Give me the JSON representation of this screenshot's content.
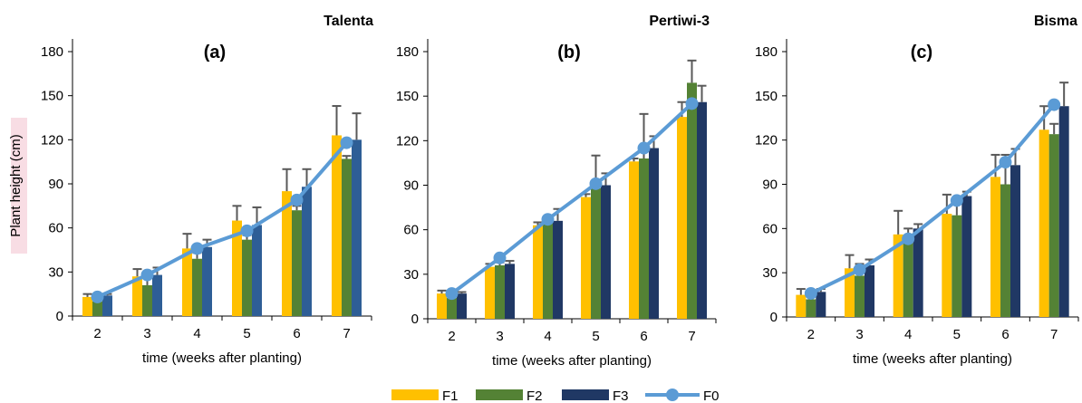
{
  "legend": {
    "items": [
      {
        "key": "F1",
        "label": "F1"
      },
      {
        "key": "F2",
        "label": "F2"
      },
      {
        "key": "F3",
        "label": "F3"
      },
      {
        "key": "F0",
        "label": "F0"
      }
    ]
  },
  "colors": {
    "F1": "#FFC000",
    "F2": "#548235",
    "F3": "#203864",
    "F3_talenta": "#2E5E96",
    "F0": "#5B9BD5",
    "error_bar": "#595959",
    "ylabel_highlight": "#F8DDE4"
  },
  "chart_data": [
    {
      "type": "bar",
      "panel_label": "(a)",
      "variety": "Talenta",
      "xlabel": "time (weeks after planting)",
      "ylabel": "Plant height (cm)",
      "ylim": [
        0,
        180
      ],
      "yticks": [
        0,
        30,
        60,
        90,
        120,
        150,
        180
      ],
      "categories": [
        "2",
        "3",
        "4",
        "5",
        "6",
        "7"
      ],
      "series": [
        {
          "name": "F1",
          "kind": "bar",
          "values": [
            13,
            27,
            46,
            65,
            85,
            123
          ],
          "errors": [
            2,
            5,
            10,
            10,
            15,
            20
          ]
        },
        {
          "name": "F2",
          "kind": "bar",
          "values": [
            10,
            21,
            39,
            52,
            72,
            107
          ],
          "errors": [
            3,
            5,
            4,
            3,
            3,
            2
          ]
        },
        {
          "name": "F3",
          "kind": "bar",
          "values": [
            14,
            28,
            47,
            62,
            88,
            120
          ],
          "errors": [
            1,
            5,
            5,
            12,
            12,
            18
          ]
        },
        {
          "name": "F0",
          "kind": "line",
          "values": [
            13,
            28,
            46,
            58,
            79,
            118
          ]
        }
      ]
    },
    {
      "type": "bar",
      "panel_label": "(b)",
      "variety": "Pertiwi-3",
      "xlabel": "time (weeks after planting)",
      "ylabel": "",
      "ylim": [
        0,
        180
      ],
      "yticks": [
        0,
        30,
        60,
        90,
        120,
        150,
        180
      ],
      "categories": [
        "2",
        "3",
        "4",
        "5",
        "6",
        "7"
      ],
      "series": [
        {
          "name": "F1",
          "kind": "bar",
          "values": [
            17,
            35,
            63,
            82,
            106,
            136
          ],
          "errors": [
            2,
            2,
            2,
            2,
            2,
            10
          ]
        },
        {
          "name": "F2",
          "kind": "bar",
          "values": [
            14,
            36,
            66,
            88,
            108,
            159
          ],
          "errors": [
            2,
            2,
            2,
            22,
            30,
            15
          ]
        },
        {
          "name": "F3",
          "kind": "bar",
          "values": [
            17,
            37,
            66,
            90,
            115,
            146
          ],
          "errors": [
            1,
            2,
            8,
            8,
            8,
            11
          ]
        },
        {
          "name": "F0",
          "kind": "line",
          "values": [
            17,
            41,
            67,
            91,
            115,
            145
          ]
        }
      ]
    },
    {
      "type": "bar",
      "panel_label": "(c)",
      "variety": "Bisma",
      "xlabel": "time (weeks after planting)",
      "ylabel": "",
      "ylim": [
        0,
        180
      ],
      "yticks": [
        0,
        30,
        60,
        90,
        120,
        150,
        180
      ],
      "categories": [
        "2",
        "3",
        "4",
        "5",
        "6",
        "7"
      ],
      "series": [
        {
          "name": "F1",
          "kind": "bar",
          "values": [
            15,
            33,
            56,
            70,
            95,
            127
          ],
          "errors": [
            4,
            9,
            16,
            13,
            15,
            16
          ]
        },
        {
          "name": "F2",
          "kind": "bar",
          "values": [
            12,
            28,
            52,
            69,
            90,
            124
          ],
          "errors": [
            3,
            8,
            8,
            12,
            20,
            7
          ]
        },
        {
          "name": "F3",
          "kind": "bar",
          "values": [
            17,
            35,
            60,
            82,
            103,
            143
          ],
          "errors": [
            2,
            4,
            3,
            3,
            11,
            16
          ]
        },
        {
          "name": "F0",
          "kind": "line",
          "values": [
            16,
            32,
            53,
            79,
            105,
            144
          ]
        }
      ]
    }
  ]
}
